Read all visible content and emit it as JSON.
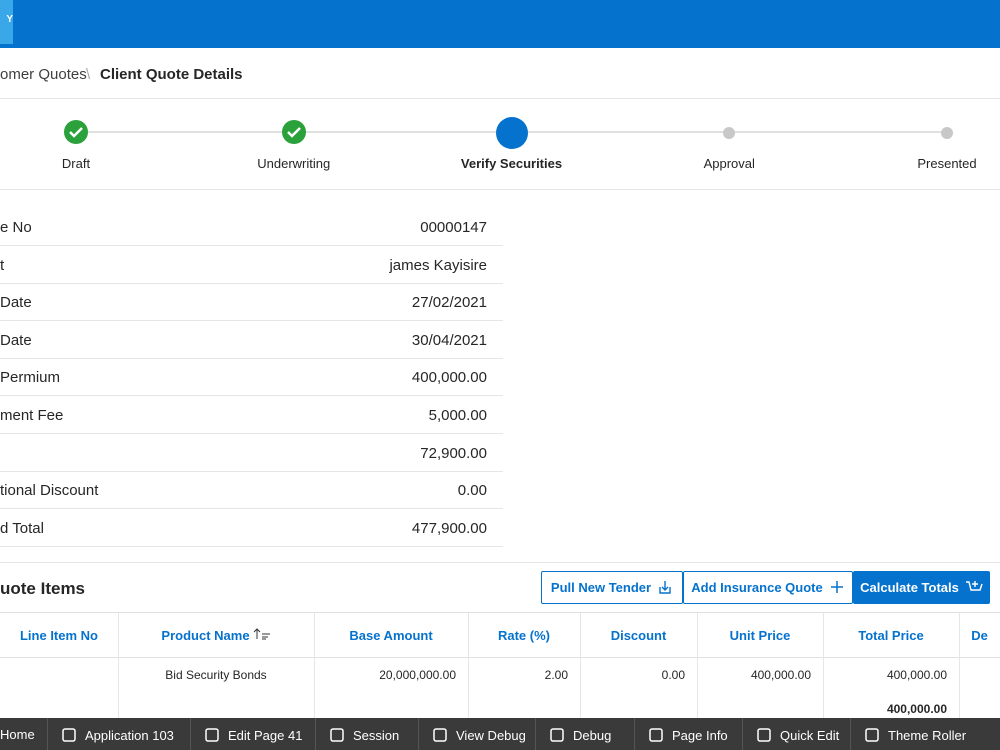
{
  "header": {
    "logo": "Y"
  },
  "breadcrumb": {
    "parent": "omer Quotes",
    "current": "Client Quote Details"
  },
  "steps": [
    "Draft",
    "Underwriting",
    "Verify Securities",
    "Approval",
    "Presented"
  ],
  "details": [
    {
      "label": "e No",
      "value": "00000147"
    },
    {
      "label": "t",
      "value": "james Kayisire"
    },
    {
      "label": "Date",
      "value": "27/02/2021"
    },
    {
      "label": "Date",
      "value": "30/04/2021"
    },
    {
      "label": "Permium",
      "value": "400,000.00"
    },
    {
      "label": "ment Fee",
      "value": "5,000.00"
    },
    {
      "value": "72,900.00"
    },
    {
      "label": "tional Discount",
      "value": "0.00"
    },
    {
      "label": "d Total",
      "value": "477,900.00"
    }
  ],
  "items": {
    "title": "uote Items",
    "buttons": [
      "Pull New Tender",
      "Add Insurance Quote",
      "Calculate Totals"
    ],
    "table": {
      "columns": [
        "Line Item No",
        "Product Name",
        "Base Amount",
        "Rate (%)",
        "Discount",
        "Unit Price",
        "Total Price",
        "De"
      ],
      "rows": [
        [
          null,
          "Bid Security Bonds",
          "20,000,000.00",
          "2.00",
          "0.00",
          "400,000.00",
          "400,000.00"
        ]
      ],
      "total": "400,000.00"
    }
  },
  "toolbar": [
    "Home",
    "Application 103",
    "Edit Page 41",
    "Session",
    "View Debug",
    "Debug",
    "Page Info",
    "Quick Edit",
    "Theme Roller"
  ]
}
